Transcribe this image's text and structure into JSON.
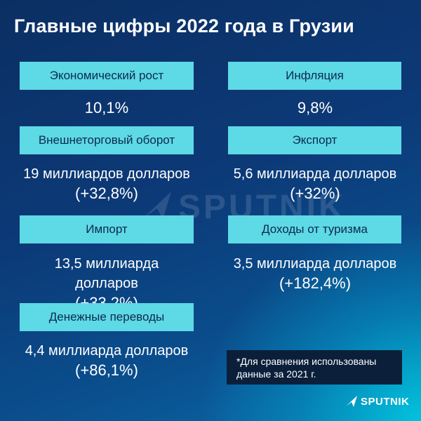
{
  "title": "Главные цифры 2022 года в Грузии",
  "items": [
    {
      "label": "Экономический рост",
      "value_line1": "10,1%",
      "value_line2": ""
    },
    {
      "label": "Инфляция",
      "value_line1": "9,8%",
      "value_line2": ""
    },
    {
      "label": "Внешнеторговый оборот",
      "value_line1": "19 миллиардов долларов",
      "value_line2": "(+32,8%)"
    },
    {
      "label": "Экспорт",
      "value_line1": "5,6 миллиарда долларов",
      "value_line2": "(+32%)"
    },
    {
      "label": "Импорт",
      "value_line1": "13,5 миллиарда долларов",
      "value_line2": "(+33,2%)"
    },
    {
      "label": "Доходы от туризма",
      "value_line1": "3,5 миллиарда долларов",
      "value_line2": "(+182,4%)"
    },
    {
      "label": "Денежные переводы",
      "value_line1": "4,4 миллиарда долларов",
      "value_line2": "(+86,1%)"
    }
  ],
  "note": {
    "line1": "*Для сравнения использованы",
    "line2": "данные за 2021 г."
  },
  "watermark": "SPUTNIK",
  "logo": {
    "text": "SPUTNIK",
    "icon": "sputnik-arrow-icon"
  },
  "colors": {
    "label_bg": "#5ed9e6",
    "label_text": "#0c2a4f",
    "note_bg": "#0b1f3a",
    "background_dark": "#0b2f63",
    "background_light": "#00d2e6"
  }
}
